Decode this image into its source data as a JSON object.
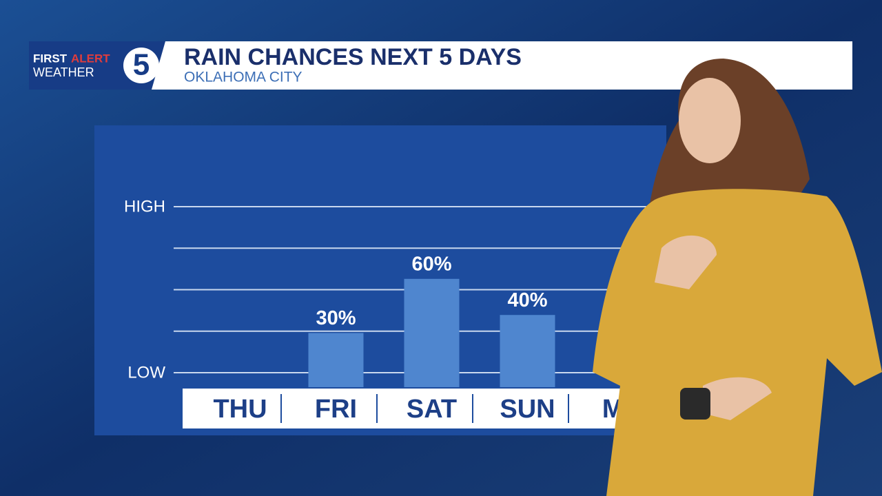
{
  "logo": {
    "first": "FIRST",
    "alert": "ALERT",
    "weather": "WEATHER",
    "number": "5"
  },
  "chart_data": {
    "type": "bar",
    "title": "RAIN CHANCES NEXT 5 DAYS",
    "subtitle": "OKLAHOMA CITY",
    "categories": [
      "THU",
      "FRI",
      "SAT",
      "SUN",
      "MO"
    ],
    "values": [
      0,
      30,
      60,
      40,
      null
    ],
    "value_labels": [
      null,
      "30%",
      "60%",
      "40%",
      null
    ],
    "color": "#4f86cf",
    "ylim": [
      0,
      100
    ],
    "yticks": [
      {
        "value": 8,
        "label": "LOW"
      },
      {
        "value": 31,
        "label": null
      },
      {
        "value": 54,
        "label": null
      },
      {
        "value": 77,
        "label": null
      },
      {
        "value": 100,
        "label": "HIGH"
      }
    ],
    "grid": true
  }
}
